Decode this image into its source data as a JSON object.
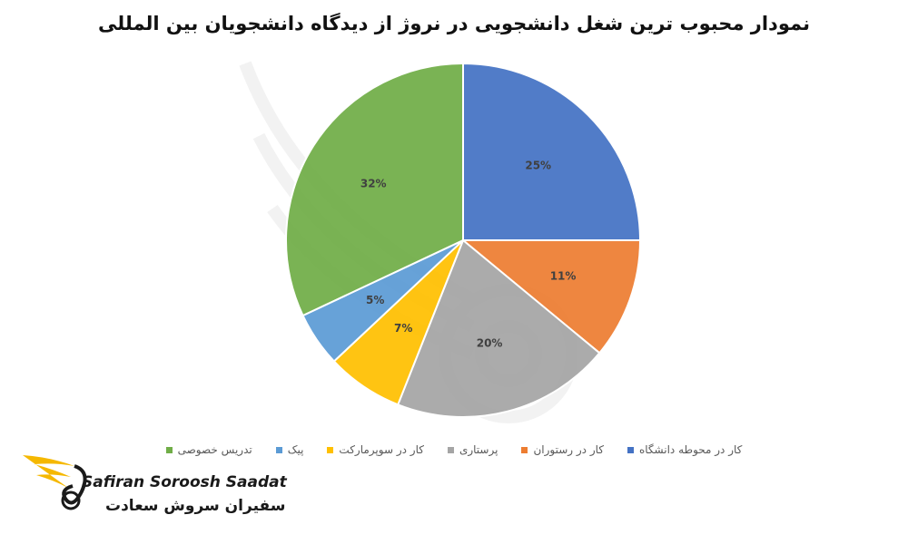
{
  "chart_data": {
    "type": "pie",
    "title": "نمودار محبوب ترین شغل دانشجویی در نروژ از دیدگاه دانشجویان بین المللی",
    "slices": [
      {
        "name": "کار در محوطه دانشگاه",
        "value": 25,
        "label": "25%",
        "color": "#4472C4"
      },
      {
        "name": "کار در رستوران",
        "value": 11,
        "label": "11%",
        "color": "#ED7D31"
      },
      {
        "name": "پرستاری",
        "value": 20,
        "label": "20%",
        "color": "#A5A5A5"
      },
      {
        "name": "کار در سوپرمارکت",
        "value": 7,
        "label": "7%",
        "color": "#FFC000"
      },
      {
        "name": "پیک",
        "value": 5,
        "label": "5%",
        "color": "#5B9BD5"
      },
      {
        "name": "تدریس خصوصی",
        "value": 32,
        "label": "32%",
        "color": "#70AD47"
      }
    ],
    "legend_position": "bottom"
  },
  "logo": {
    "en": "Safiran Soroosh Saadat",
    "fa": "سفیران سروش سعادت",
    "accent": "#F5B800"
  }
}
